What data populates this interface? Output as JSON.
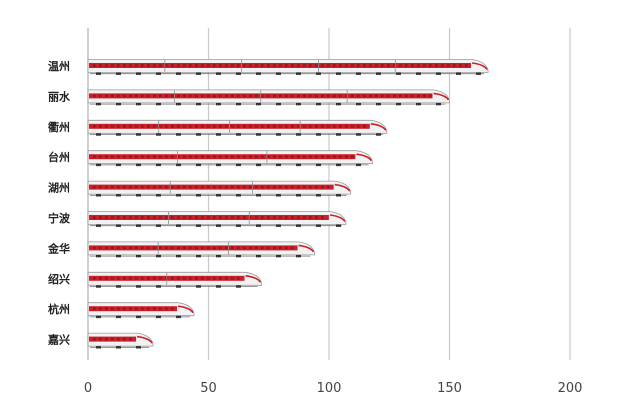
{
  "chart_data": {
    "type": "bar",
    "orientation": "horizontal",
    "categories": [
      "温州",
      "丽水",
      "衢州",
      "台州",
      "湖州",
      "宁波",
      "金华",
      "绍兴",
      "杭州",
      "嘉兴"
    ],
    "values": [
      166,
      150,
      124,
      118,
      109,
      107,
      94,
      72,
      44,
      27
    ],
    "xlim": [
      0,
      200
    ],
    "xticks": [
      0,
      50,
      100,
      150,
      200
    ],
    "grid": true,
    "bar_style": "high-speed-train",
    "colors": {
      "body": "#f2f2f2",
      "stripe": "#cc1f2a",
      "window": "#8a1d24",
      "wheel": "#333333",
      "grid": "#c8c8c8"
    }
  }
}
